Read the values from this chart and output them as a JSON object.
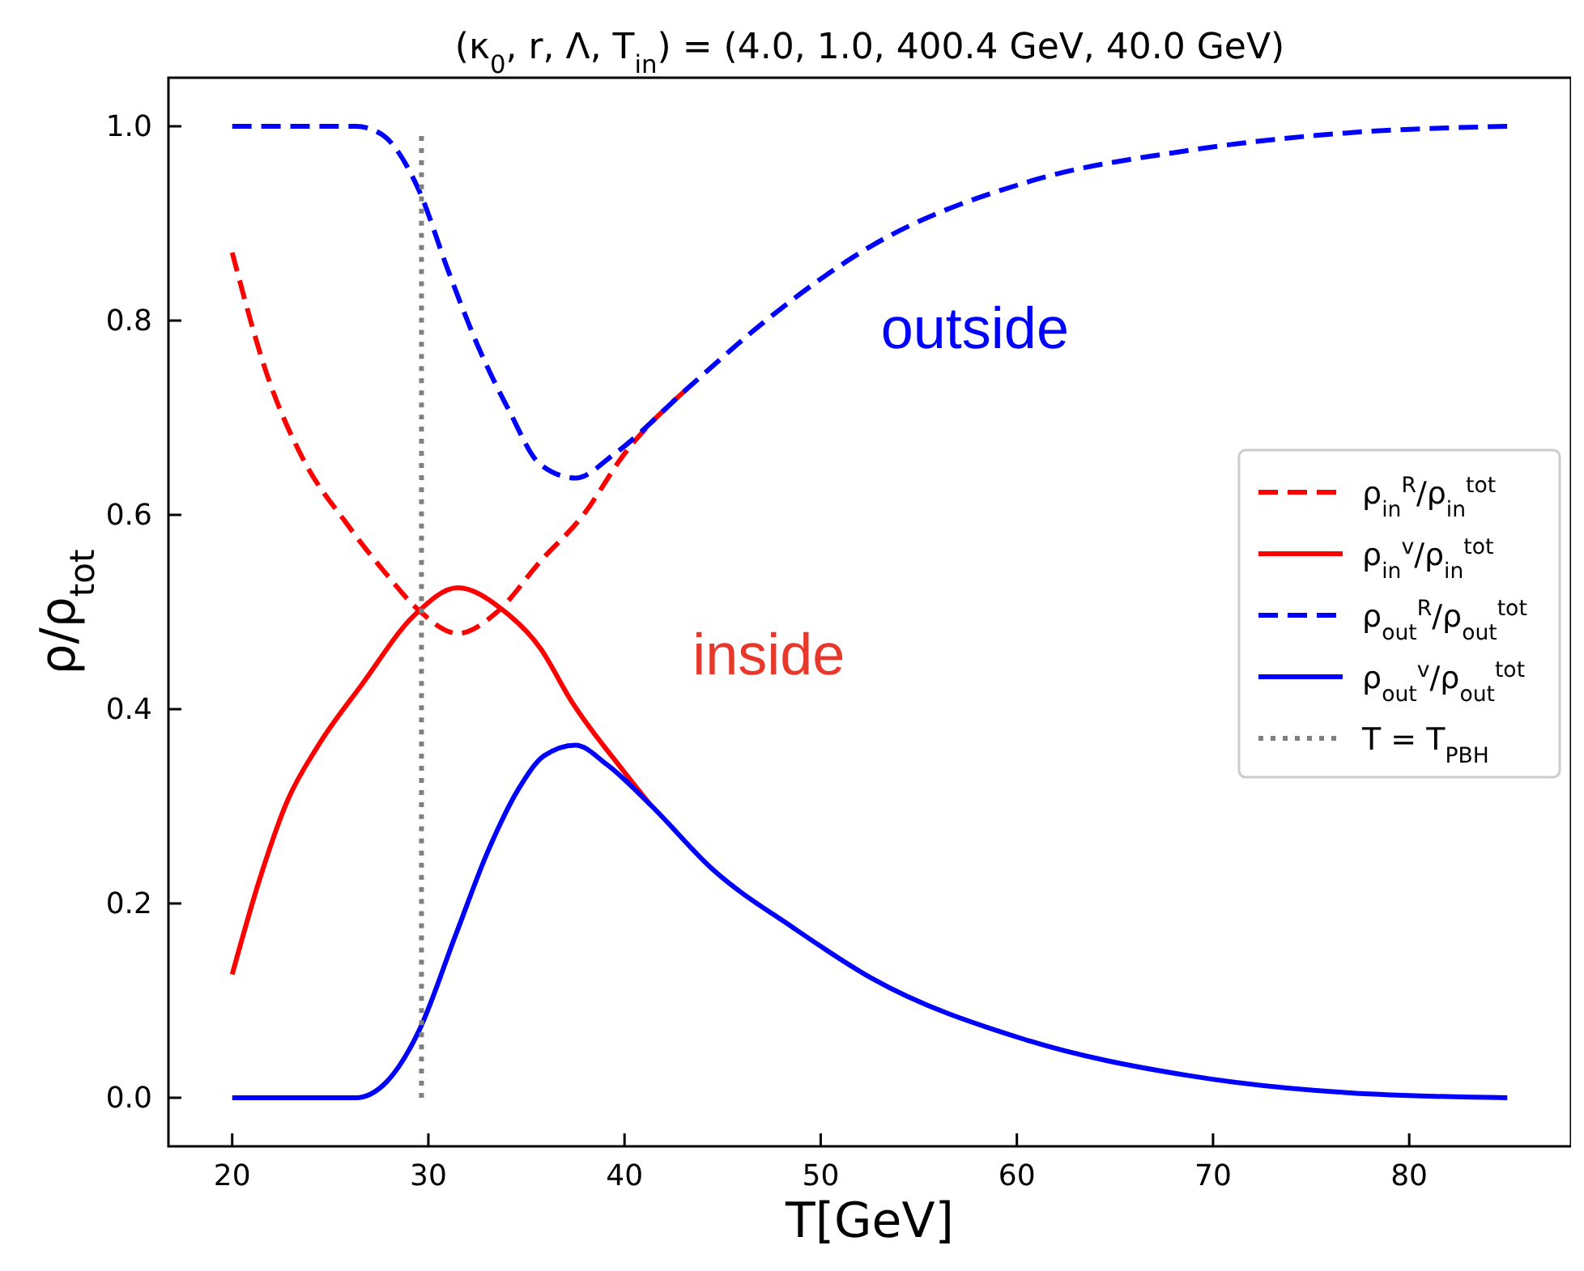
{
  "chart_data": {
    "type": "line",
    "title": "(κ$_{0}$, r, Λ, T$_{in}$) = (4.0, 1.0, 400.4 GeV, 40.0 GeV)",
    "xlabel": "T[GeV]",
    "ylabel": "ρ/ρ$_{tot}$",
    "xlim": [
      16.75,
      88.25
    ],
    "ylim": [
      -0.05,
      1.05
    ],
    "xticks": [
      20,
      30,
      40,
      50,
      60,
      70,
      80
    ],
    "yticks": [
      {
        "value": 0,
        "label": "0.0"
      },
      {
        "value": 0.2,
        "label": "0.2"
      },
      {
        "value": 0.4,
        "label": "0.4"
      },
      {
        "value": 0.6,
        "label": "0.6"
      },
      {
        "value": 0.8,
        "label": "0.8"
      },
      {
        "value": 1,
        "label": "1.0"
      }
    ],
    "grid": false,
    "legend": "right",
    "marker": "none",
    "series": [
      {
        "name": "ρ$_{in}$$^{R}$/ρ$_{in}$$^{tot}$",
        "color": "#ff0000",
        "line_style": "dashed",
        "x": [
          20,
          21.8,
          23.6,
          25.8,
          27.9,
          29.5,
          31.5,
          33.5,
          35.7,
          37.9,
          40,
          43.2
        ],
        "values": [
          0.87,
          0.743,
          0.658,
          0.592,
          0.538,
          0.502,
          0.478,
          0.5,
          0.552,
          0.6,
          0.663,
          0.73
        ]
      },
      {
        "name": "ρ$_{in}$$^{v}$/ρ$_{in}$$^{tot}$",
        "color": "#ff0000",
        "line_style": "solid",
        "x": [
          20,
          21.4,
          22.8,
          24.4,
          26.6,
          29.3,
          31.5,
          33.8,
          35.7,
          37.3,
          40,
          41.3
        ],
        "values": [
          0.127,
          0.225,
          0.305,
          0.363,
          0.425,
          0.497,
          0.525,
          0.502,
          0.463,
          0.408,
          0.335,
          0.302
        ]
      },
      {
        "name": "ρ$_{out}$$^{R}$/ρ$_{out}$$^{tot}$",
        "color": "#0000ff",
        "line_style": "dashed",
        "x": [
          20,
          26.3,
          27.6,
          29.5,
          31,
          32.5,
          34.1,
          35.7,
          37.5,
          39.5,
          43.2,
          47.2,
          52.6,
          60.6,
          68.7,
          76.7,
          85
        ],
        "values": [
          1.0,
          1.0,
          0.992,
          0.935,
          0.852,
          0.775,
          0.708,
          0.652,
          0.638,
          0.663,
          0.73,
          0.8,
          0.877,
          0.943,
          0.975,
          0.993,
          1.0
        ]
      },
      {
        "name": "ρ$_{out}$$^{v}$/ρ$_{out}$$^{tot}$",
        "color": "#0000ff",
        "line_style": "solid",
        "x": [
          20,
          26.3,
          27.9,
          29.5,
          31.4,
          33,
          34.6,
          35.9,
          37.5,
          39.1,
          41.3,
          44.5,
          48.6,
          52.6,
          60.4,
          68.7,
          77,
          85
        ],
        "values": [
          0,
          0,
          0.017,
          0.068,
          0.168,
          0.252,
          0.318,
          0.352,
          0.363,
          0.343,
          0.302,
          0.235,
          0.175,
          0.123,
          0.06,
          0.023,
          0.005,
          0
        ]
      },
      {
        "name": "T = T$_{PBH}$",
        "color": "#808080",
        "line_style": "dotted",
        "x": [
          29.65,
          29.65
        ],
        "values": [
          0,
          0.99
        ]
      }
    ],
    "annotations": [
      "outside",
      "inside"
    ]
  }
}
